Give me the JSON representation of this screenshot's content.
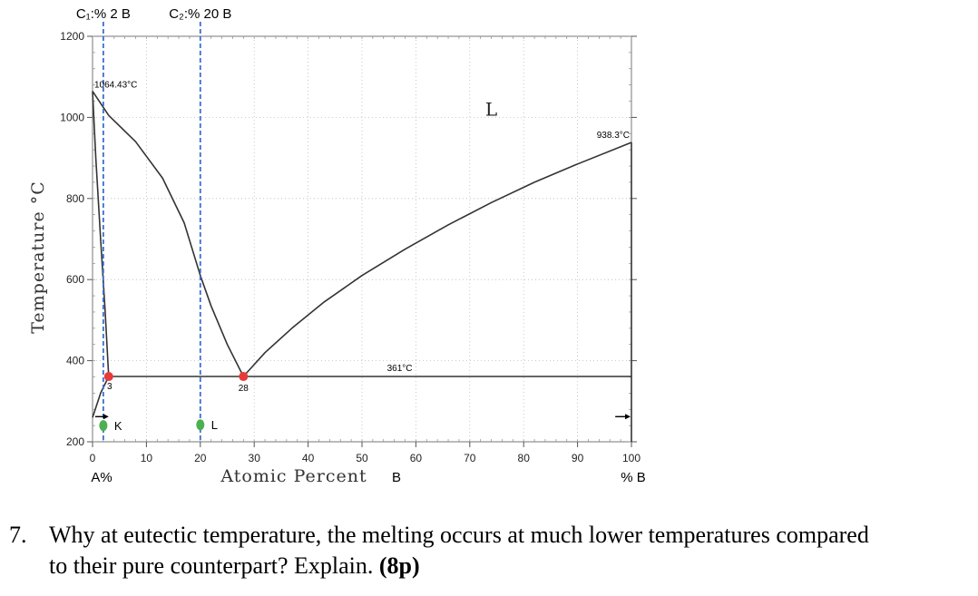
{
  "chart_data": {
    "type": "line",
    "ylabel": "Temperature °C",
    "xlabel": "Atomic Percent",
    "xlabel_suffix": "B",
    "x_left_label": "A%",
    "x_right_label": "% B",
    "xlim": [
      0,
      100
    ],
    "ylim": [
      200,
      1200
    ],
    "xticks": [
      0,
      10,
      20,
      30,
      40,
      50,
      60,
      70,
      80,
      90,
      100
    ],
    "yticks": [
      200,
      400,
      600,
      800,
      1000,
      1200
    ],
    "ytick_labels": [
      "200",
      "400",
      "600",
      "800",
      "1000",
      "1200"
    ],
    "xtick_labels": [
      "0",
      "10",
      "20",
      "30",
      "40",
      "50",
      "60",
      "70",
      "80",
      "90",
      "100"
    ],
    "series": [
      {
        "points": [
          [
            0,
            1064.43
          ],
          [
            3,
            1005
          ],
          [
            8,
            940
          ],
          [
            13,
            850
          ],
          [
            17,
            740
          ],
          [
            20,
            610
          ],
          [
            22,
            535
          ],
          [
            25,
            440
          ],
          [
            28,
            361
          ]
        ]
      },
      {
        "points": [
          [
            28,
            361
          ],
          [
            32,
            420
          ],
          [
            37,
            480
          ],
          [
            43,
            545
          ],
          [
            50,
            610
          ],
          [
            58,
            675
          ],
          [
            66,
            735
          ],
          [
            74,
            790
          ],
          [
            82,
            840
          ],
          [
            90,
            885
          ],
          [
            100,
            938.3
          ]
        ]
      },
      {
        "points": [
          [
            0,
            1064.43
          ],
          [
            0.6,
            900
          ],
          [
            1.5,
            700
          ],
          [
            2.3,
            530
          ],
          [
            3,
            361
          ]
        ]
      },
      {
        "points": [
          [
            3,
            361
          ],
          [
            1.5,
            320
          ],
          [
            0.5,
            280
          ],
          [
            0,
            260
          ]
        ]
      },
      {
        "points": [
          [
            3,
            361
          ],
          [
            100,
            361
          ]
        ]
      },
      {
        "points": [
          [
            100,
            938.3
          ],
          [
            100,
            200
          ]
        ]
      }
    ],
    "annotations": [
      {
        "text": "1064.43°C",
        "x": 0,
        "y": 1064.43
      },
      {
        "text": "938.3°C",
        "x": 100,
        "y": 938.3
      },
      {
        "text": "361°C",
        "x": 57,
        "y": 361
      },
      {
        "text": "3",
        "x": 3,
        "y": 361
      },
      {
        "text": "28",
        "x": 28,
        "y": 361
      },
      {
        "text": "L",
        "x": 74,
        "y": 1020
      }
    ],
    "eutectic_points": [
      [
        3,
        361
      ],
      [
        28,
        361
      ]
    ],
    "composition_lines": [
      {
        "label": "C₁:% 2 B",
        "x": 2
      },
      {
        "label": "C₂:% 20 B",
        "x": 20
      }
    ],
    "state_points": [
      {
        "label": "K",
        "x": 2,
        "y": 240
      },
      {
        "label": "L",
        "x": 20,
        "y": 242
      }
    ],
    "colors": {
      "curve": "#333333",
      "composition_line": "#3d6fcf",
      "eutectic_point": "#e83a3a",
      "state_point": "#4cb050",
      "frame": "#555555"
    }
  },
  "question": {
    "number": "7.",
    "line1": "Why at eutectic temperature, the melting occurs at much lower temperatures compared",
    "line2": "to their pure counterpart? Explain.",
    "points": "(8p)"
  }
}
